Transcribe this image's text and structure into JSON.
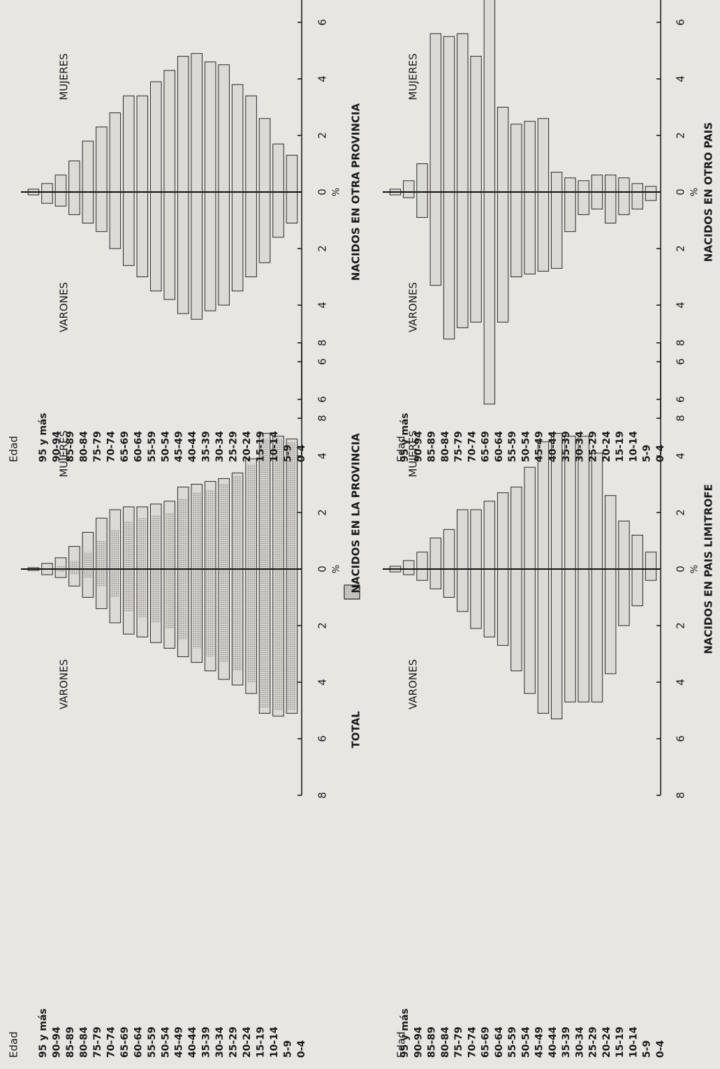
{
  "age_header": "Edad",
  "age_groups": [
    "95 y más",
    "90-94",
    "85-89",
    "80-84",
    "75-79",
    "70-74",
    "65-69",
    "60-64",
    "55-59",
    "50-54",
    "45-49",
    "40-44",
    "35-39",
    "30-34",
    "25-29",
    "20-24",
    "15-19",
    "10-14",
    "5-9",
    "0-4"
  ],
  "men_label": "VARONES",
  "women_label": "MUJERES",
  "axis_unit": "%",
  "legend_label": "NACIDOS EN LA PROVINCIA",
  "chart_data": [
    {
      "type": "bar",
      "title": "TOTAL",
      "ticks": [
        8,
        6,
        4,
        2,
        0,
        2,
        4,
        6,
        8
      ],
      "xlim": [
        -8,
        8
      ],
      "categories": [
        "95 y más",
        "90-94",
        "85-89",
        "80-84",
        "75-79",
        "70-74",
        "65-69",
        "60-64",
        "55-59",
        "50-54",
        "45-49",
        "40-44",
        "35-39",
        "30-34",
        "25-29",
        "20-24",
        "15-19",
        "10-14",
        "5-9",
        "0-4"
      ],
      "series": [
        {
          "name": "VARONES",
          "values": [
            0.05,
            0.2,
            0.3,
            0.6,
            1.0,
            1.4,
            1.9,
            2.3,
            2.4,
            2.6,
            2.8,
            3.1,
            3.3,
            3.6,
            3.9,
            4.1,
            4.4,
            5.1,
            5.2,
            5.1
          ]
        },
        {
          "name": "MUJERES",
          "values": [
            0.05,
            0.2,
            0.4,
            0.8,
            1.3,
            1.8,
            2.1,
            2.2,
            2.2,
            2.3,
            2.4,
            2.9,
            3.0,
            3.1,
            3.2,
            3.4,
            3.9,
            4.8,
            4.7,
            4.6
          ]
        },
        {
          "name": "NACIDOS EN LA PROVINCIA",
          "values_men": [
            0,
            0,
            0.1,
            0.2,
            0.3,
            0.6,
            1.0,
            1.5,
            1.7,
            1.9,
            2.1,
            2.5,
            2.8,
            3.1,
            3.3,
            3.6,
            4.0,
            4.9,
            5.0,
            5.0
          ],
          "values_women": [
            0,
            0,
            0.1,
            0.3,
            0.6,
            1.0,
            1.4,
            1.7,
            1.8,
            1.9,
            2.0,
            2.5,
            2.7,
            2.8,
            3.0,
            3.3,
            3.7,
            4.6,
            4.6,
            4.5
          ]
        }
      ]
    },
    {
      "type": "bar",
      "title": "NACIDOS EN OTRA PROVINCIA",
      "ticks": [
        8,
        6,
        4,
        2,
        0,
        2,
        4,
        6,
        8
      ],
      "xlim": [
        -8,
        8
      ],
      "categories": [
        "95 y más",
        "90-94",
        "85-89",
        "80-84",
        "75-79",
        "70-74",
        "65-69",
        "60-64",
        "55-59",
        "50-54",
        "45-49",
        "40-44",
        "35-39",
        "30-34",
        "25-29",
        "20-24",
        "15-19",
        "10-14",
        "5-9",
        "0-4"
      ],
      "series": [
        {
          "name": "VARONES",
          "values": [
            0.1,
            0.4,
            0.5,
            0.8,
            1.1,
            1.4,
            2.0,
            2.6,
            3.0,
            3.5,
            3.8,
            4.3,
            4.5,
            4.2,
            4.0,
            3.5,
            3.0,
            2.5,
            1.6,
            1.1
          ]
        },
        {
          "name": "MUJERES",
          "values": [
            0.1,
            0.3,
            0.6,
            1.1,
            1.8,
            2.3,
            2.8,
            3.4,
            3.4,
            3.9,
            4.3,
            4.8,
            4.9,
            4.6,
            4.5,
            3.8,
            3.4,
            2.6,
            1.7,
            1.3
          ]
        }
      ]
    },
    {
      "type": "bar",
      "title": "NACIDOS EN PAIS LIMITROFE",
      "ticks": [
        8,
        6,
        4,
        2,
        0,
        2,
        4,
        6,
        8
      ],
      "xlim": [
        -8,
        8
      ],
      "categories": [
        "95 y más",
        "90-94",
        "85-89",
        "80-84",
        "75-79",
        "70-74",
        "65-69",
        "60-64",
        "55-59",
        "50-54",
        "45-49",
        "40-44",
        "35-39",
        "30-34",
        "25-29",
        "20-24",
        "15-19",
        "10-14",
        "5-9",
        "0-4"
      ],
      "series": [
        {
          "name": "VARONES",
          "values": [
            0.1,
            0.2,
            0.4,
            0.7,
            1.0,
            1.5,
            2.1,
            2.4,
            2.7,
            3.6,
            4.4,
            5.1,
            5.3,
            4.7,
            4.7,
            4.7,
            3.7,
            2.0,
            1.3,
            0.4
          ]
        },
        {
          "name": "MUJERES",
          "values": [
            0.1,
            0.3,
            0.6,
            1.1,
            1.4,
            2.1,
            2.1,
            2.4,
            2.7,
            2.9,
            3.6,
            4.5,
            4.8,
            4.7,
            4.7,
            4.1,
            2.6,
            1.7,
            1.2,
            0.6
          ]
        }
      ]
    },
    {
      "type": "bar",
      "title": "NACIDOS EN OTRO PAIS",
      "ticks": [
        8,
        6,
        4,
        2,
        0,
        2,
        4,
        6,
        8
      ],
      "xlim": [
        -8,
        8
      ],
      "categories": [
        "95 y más",
        "90-94",
        "85-89",
        "80-84",
        "75-79",
        "70-74",
        "65-69",
        "60-64",
        "55-59",
        "50-54",
        "45-49",
        "40-44",
        "35-39",
        "30-34",
        "25-29",
        "20-24",
        "15-19",
        "10-14",
        "5-9",
        "0-4"
      ],
      "series": [
        {
          "name": "VARONES",
          "values": [
            0.1,
            0.2,
            0.9,
            3.3,
            5.2,
            4.8,
            4.6,
            7.5,
            4.6,
            3.0,
            2.9,
            2.8,
            2.7,
            1.4,
            0.8,
            0.6,
            1.1,
            0.8,
            0.6,
            0.3
          ]
        },
        {
          "name": "MUJERES",
          "values": [
            0.1,
            0.4,
            1.0,
            5.6,
            5.5,
            5.6,
            4.8,
            8.0,
            3.0,
            2.4,
            2.5,
            2.6,
            0.7,
            0.5,
            0.4,
            0.6,
            0.6,
            0.5,
            0.3,
            0.2
          ]
        }
      ]
    }
  ]
}
